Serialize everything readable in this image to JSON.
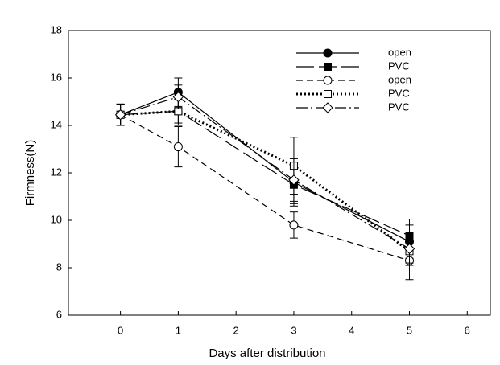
{
  "chart_data": {
    "type": "line",
    "x_label": "Days after distribution",
    "y_label": "Firmness(N)",
    "xlim": [
      -0.9,
      6.4
    ],
    "ylim": [
      6,
      18
    ],
    "xticks": [
      0,
      1,
      2,
      3,
      4,
      5,
      6
    ],
    "yticks": [
      6,
      8,
      10,
      12,
      14,
      16,
      18
    ],
    "x": [
      0,
      1,
      3,
      5
    ],
    "legend": "upper right",
    "series": [
      {
        "name": "open",
        "color": "#000000",
        "marker": "circle",
        "filled": true,
        "line_style": "solid",
        "values": [
          14.45,
          15.4,
          11.6,
          9.1
        ],
        "errors": [
          0.45,
          0.6,
          1.0,
          0.7
        ]
      },
      {
        "name": "PVC",
        "color": "#000000",
        "marker": "square",
        "filled": true,
        "line_style": "longdash",
        "values": [
          14.45,
          14.6,
          11.5,
          9.35
        ],
        "errors": [
          0.45,
          0.5,
          0.8,
          0.7
        ]
      },
      {
        "name": "open",
        "color": "#000000",
        "marker": "circle",
        "filled": false,
        "line_style": "dash",
        "values": [
          14.45,
          13.1,
          9.8,
          8.3
        ],
        "errors": [
          0.45,
          0.85,
          0.55,
          0.8
        ]
      },
      {
        "name": "PVC",
        "color": "#000000",
        "marker": "square",
        "filled": false,
        "line_style": "dot",
        "values": [
          14.45,
          14.6,
          12.3,
          8.7
        ],
        "errors": [
          0.45,
          0.6,
          1.2,
          0.6
        ]
      },
      {
        "name": "PVC",
        "color": "#000000",
        "marker": "diamond",
        "filled": false,
        "line_style": "dashdot",
        "values": [
          14.45,
          15.2,
          11.7,
          8.8
        ],
        "errors": [
          0.45,
          0.5,
          0.9,
          0.6
        ]
      }
    ]
  }
}
